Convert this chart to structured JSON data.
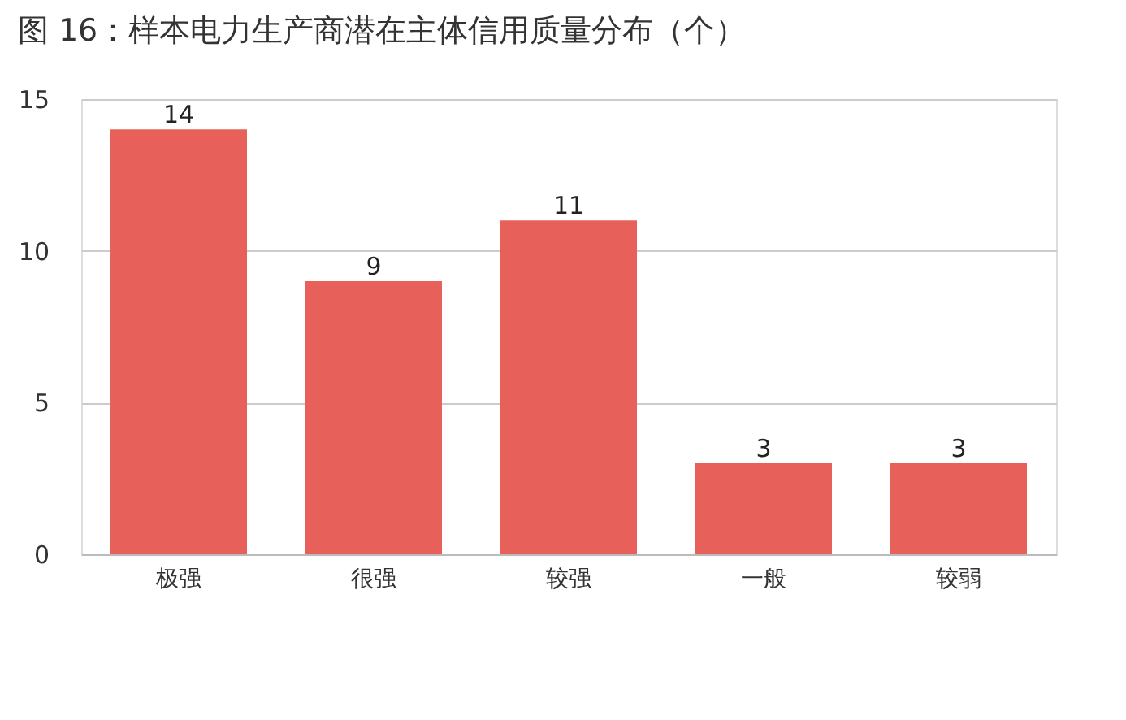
{
  "chart_data": {
    "type": "bar",
    "title": "图 16：样本电力生产商潜在主体信用质量分布（个）",
    "categories": [
      "极强",
      "很强",
      "较强",
      "一般",
      "较弱"
    ],
    "values": [
      14,
      9,
      11,
      3,
      3
    ],
    "color": "#e8605a",
    "ylim": [
      0,
      15
    ],
    "yticks": [
      0,
      5,
      10,
      15
    ],
    "grid": "y",
    "data_labels": true
  }
}
